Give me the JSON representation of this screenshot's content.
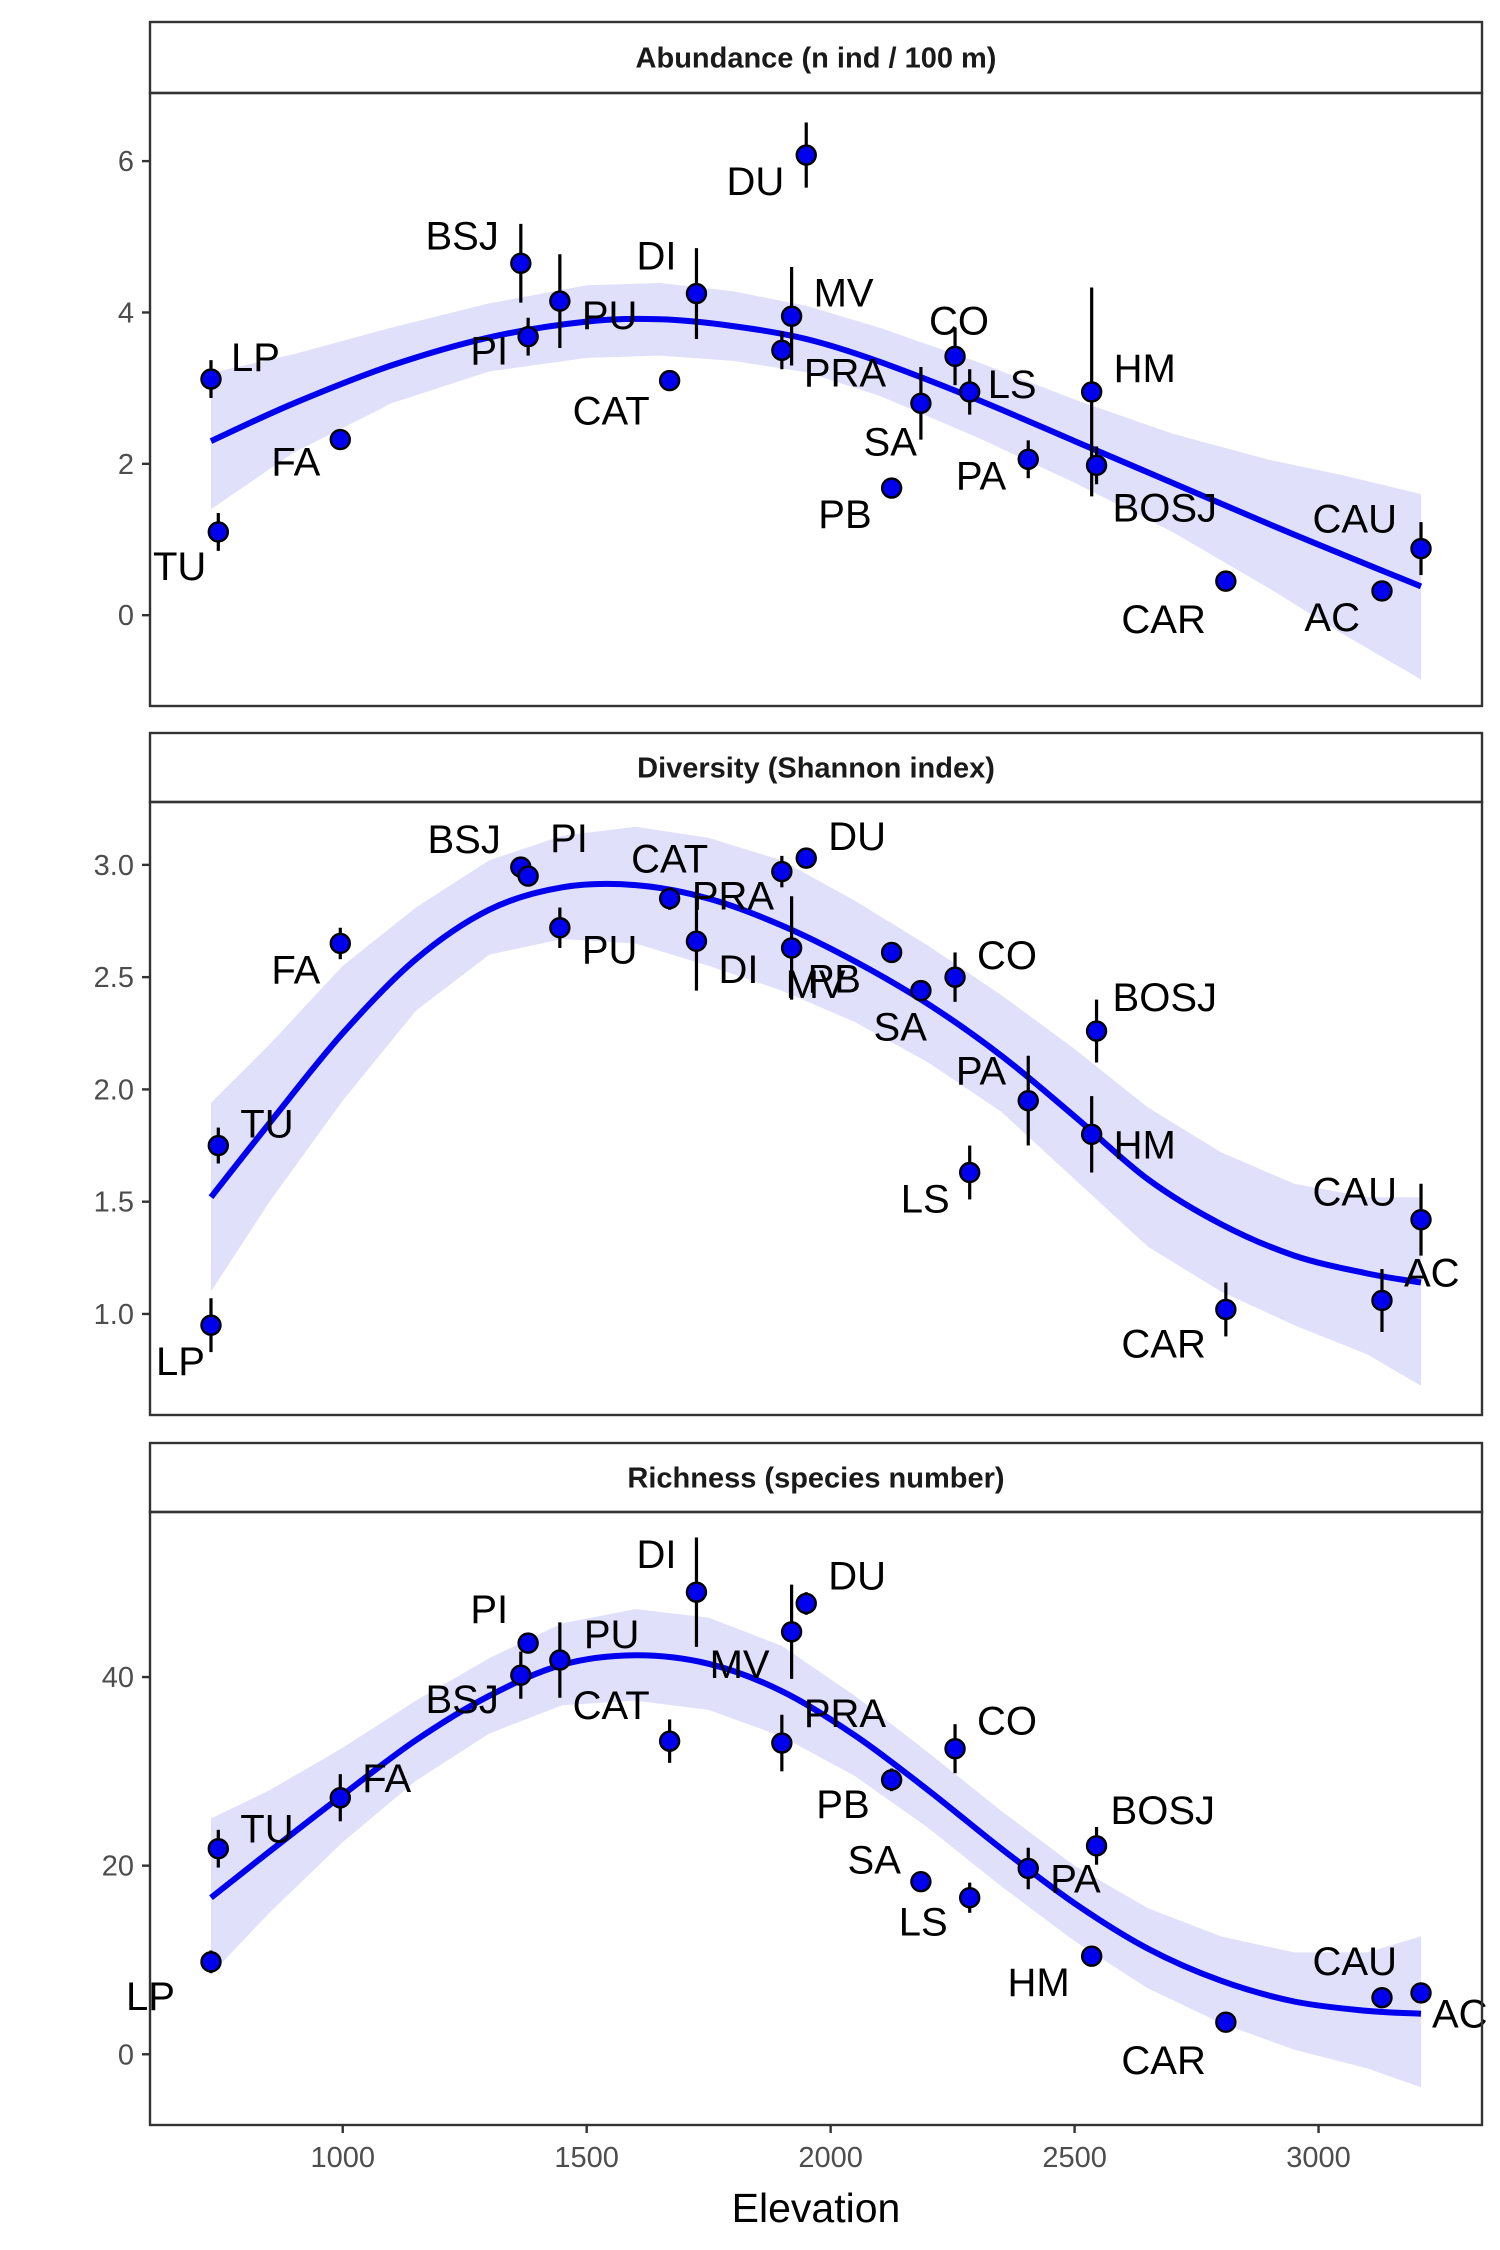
{
  "chart_data": [
    {
      "type": "scatter",
      "title": "Abundance (n ind / 100 m)",
      "ylim": [
        -1.2,
        6.9
      ],
      "yticks": [
        0,
        2,
        4,
        6
      ],
      "band_ymin": -1.2,
      "points": [
        {
          "label": "TU",
          "x": 745,
          "y": 1.1,
          "err": 0.25
        },
        {
          "label": "LP",
          "x": 730,
          "y": 3.12,
          "err": 0.25
        },
        {
          "label": "FA",
          "x": 995,
          "y": 2.32,
          "err": 0.12
        },
        {
          "label": "PI",
          "x": 1380,
          "y": 3.68,
          "err": 0.25
        },
        {
          "label": "BSJ",
          "x": 1365,
          "y": 4.65,
          "err": 0.52
        },
        {
          "label": "PU",
          "x": 1445,
          "y": 4.15,
          "err": 0.62
        },
        {
          "label": "CAT",
          "x": 1670,
          "y": 3.1,
          "err": 0.1
        },
        {
          "label": "DI",
          "x": 1725,
          "y": 4.25,
          "err": 0.6
        },
        {
          "label": "MV",
          "x": 1920,
          "y": 3.95,
          "err": 0.65
        },
        {
          "label": "DU",
          "x": 1950,
          "y": 6.08,
          "err": 0.43
        },
        {
          "label": "PRA",
          "x": 1900,
          "y": 3.5,
          "err": 0.25
        },
        {
          "label": "PB",
          "x": 2125,
          "y": 1.68,
          "err": 0.12
        },
        {
          "label": "SA",
          "x": 2185,
          "y": 2.8,
          "err": 0.48
        },
        {
          "label": "CO",
          "x": 2255,
          "y": 3.42,
          "err": 0.38
        },
        {
          "label": "LS",
          "x": 2285,
          "y": 2.95,
          "err": 0.3
        },
        {
          "label": "PA",
          "x": 2405,
          "y": 2.06,
          "err": 0.25
        },
        {
          "label": "HM",
          "x": 2535,
          "y": 2.95,
          "err": 1.38
        },
        {
          "label": "BOSJ",
          "x": 2545,
          "y": 1.98,
          "err": 0.25
        },
        {
          "label": "CAR",
          "x": 2810,
          "y": 0.45,
          "err": 0.05
        },
        {
          "label": "AC",
          "x": 3130,
          "y": 0.32,
          "err": 0.05
        },
        {
          "label": "CAU",
          "x": 3210,
          "y": 0.88,
          "err": 0.35
        }
      ],
      "fit": [
        {
          "x": 730,
          "y": 2.3,
          "lo": 1.4,
          "hi": 3.2
        },
        {
          "x": 900,
          "y": 2.8,
          "lo": 2.15,
          "hi": 3.45
        },
        {
          "x": 1100,
          "y": 3.3,
          "lo": 2.8,
          "hi": 3.8
        },
        {
          "x": 1300,
          "y": 3.67,
          "lo": 3.22,
          "hi": 4.12
        },
        {
          "x": 1500,
          "y": 3.88,
          "lo": 3.4,
          "hi": 4.36
        },
        {
          "x": 1650,
          "y": 3.91,
          "lo": 3.43,
          "hi": 4.39
        },
        {
          "x": 1800,
          "y": 3.82,
          "lo": 3.36,
          "hi": 4.28
        },
        {
          "x": 1950,
          "y": 3.65,
          "lo": 3.21,
          "hi": 4.09
        },
        {
          "x": 2100,
          "y": 3.35,
          "lo": 2.9,
          "hi": 3.8
        },
        {
          "x": 2300,
          "y": 2.85,
          "lo": 2.35,
          "hi": 3.35
        },
        {
          "x": 2500,
          "y": 2.3,
          "lo": 1.75,
          "hi": 2.85
        },
        {
          "x": 2700,
          "y": 1.75,
          "lo": 1.1,
          "hi": 2.4
        },
        {
          "x": 2900,
          "y": 1.2,
          "lo": 0.35,
          "hi": 2.05
        },
        {
          "x": 3050,
          "y": 0.8,
          "lo": -0.25,
          "hi": 1.85
        },
        {
          "x": 3210,
          "y": 0.38,
          "lo": -0.85,
          "hi": 1.6
        }
      ]
    },
    {
      "type": "scatter",
      "title": "Diversity (Shannon index)",
      "ylim": [
        0.55,
        3.28
      ],
      "yticks": [
        1.0,
        1.5,
        2.0,
        2.5,
        3.0
      ],
      "ytick_labels": [
        "1.0",
        "1.5",
        "2.0",
        "2.5",
        "3.0"
      ],
      "band_ymin": 0.55,
      "points": [
        {
          "label": "LP",
          "x": 730,
          "y": 0.95,
          "err": 0.12
        },
        {
          "label": "TU",
          "x": 745,
          "y": 1.75,
          "err": 0.08
        },
        {
          "label": "FA",
          "x": 995,
          "y": 2.65,
          "err": 0.07
        },
        {
          "label": "BSJ",
          "x": 1365,
          "y": 2.99,
          "err": 0.04
        },
        {
          "label": "PI",
          "x": 1380,
          "y": 2.95,
          "err": 0.04
        },
        {
          "label": "PU",
          "x": 1445,
          "y": 2.72,
          "err": 0.09
        },
        {
          "label": "CAT",
          "x": 1670,
          "y": 2.85,
          "err": 0.05
        },
        {
          "label": "DI",
          "x": 1725,
          "y": 2.66,
          "err": 0.22
        },
        {
          "label": "PRA",
          "x": 1900,
          "y": 2.97,
          "err": 0.07
        },
        {
          "label": "MV",
          "x": 1920,
          "y": 2.63,
          "err": 0.23
        },
        {
          "label": "DU",
          "x": 1950,
          "y": 3.03,
          "err": 0.03
        },
        {
          "label": "PB",
          "x": 2125,
          "y": 2.61,
          "err": 0.04
        },
        {
          "label": "SA",
          "x": 2185,
          "y": 2.44,
          "err": 0.03
        },
        {
          "label": "CO",
          "x": 2255,
          "y": 2.5,
          "err": 0.11
        },
        {
          "label": "LS",
          "x": 2285,
          "y": 1.63,
          "err": 0.12
        },
        {
          "label": "PA",
          "x": 2405,
          "y": 1.95,
          "err": 0.2
        },
        {
          "label": "HM",
          "x": 2535,
          "y": 1.8,
          "err": 0.17
        },
        {
          "label": "BOSJ",
          "x": 2545,
          "y": 2.26,
          "err": 0.14
        },
        {
          "label": "CAR",
          "x": 2810,
          "y": 1.02,
          "err": 0.12
        },
        {
          "label": "AC",
          "x": 3130,
          "y": 1.06,
          "err": 0.14
        },
        {
          "label": "CAU",
          "x": 3210,
          "y": 1.42,
          "err": 0.16
        }
      ],
      "fit": [
        {
          "x": 730,
          "y": 1.52,
          "lo": 1.1,
          "hi": 1.94
        },
        {
          "x": 850,
          "y": 1.85,
          "lo": 1.5,
          "hi": 2.2
        },
        {
          "x": 1000,
          "y": 2.25,
          "lo": 1.95,
          "hi": 2.55
        },
        {
          "x": 1150,
          "y": 2.58,
          "lo": 2.35,
          "hi": 2.81
        },
        {
          "x": 1300,
          "y": 2.8,
          "lo": 2.6,
          "hi": 3.02
        },
        {
          "x": 1450,
          "y": 2.9,
          "lo": 2.67,
          "hi": 3.13
        },
        {
          "x": 1600,
          "y": 2.91,
          "lo": 2.65,
          "hi": 3.17
        },
        {
          "x": 1750,
          "y": 2.85,
          "lo": 2.55,
          "hi": 3.12
        },
        {
          "x": 1900,
          "y": 2.73,
          "lo": 2.44,
          "hi": 3.02
        },
        {
          "x": 2050,
          "y": 2.57,
          "lo": 2.3,
          "hi": 2.84
        },
        {
          "x": 2200,
          "y": 2.38,
          "lo": 2.12,
          "hi": 2.64
        },
        {
          "x": 2350,
          "y": 2.15,
          "lo": 1.9,
          "hi": 2.42
        },
        {
          "x": 2500,
          "y": 1.88,
          "lo": 1.6,
          "hi": 2.18
        },
        {
          "x": 2650,
          "y": 1.6,
          "lo": 1.3,
          "hi": 1.92
        },
        {
          "x": 2800,
          "y": 1.4,
          "lo": 1.1,
          "hi": 1.72
        },
        {
          "x": 2950,
          "y": 1.26,
          "lo": 0.95,
          "hi": 1.58
        },
        {
          "x": 3100,
          "y": 1.18,
          "lo": 0.82,
          "hi": 1.52
        },
        {
          "x": 3210,
          "y": 1.14,
          "lo": 0.68,
          "hi": 1.52
        }
      ]
    },
    {
      "type": "scatter",
      "title": "Richness (species number)",
      "ylim": [
        -7.5,
        57.5
      ],
      "yticks": [
        0,
        20,
        40
      ],
      "band_ymin": -7.5,
      "points": [
        {
          "label": "LP",
          "x": 730,
          "y": 9.8,
          "err": 1.2
        },
        {
          "label": "TU",
          "x": 745,
          "y": 21.8,
          "err": 2.0
        },
        {
          "label": "FA",
          "x": 995,
          "y": 27.2,
          "err": 2.5
        },
        {
          "label": "BSJ",
          "x": 1365,
          "y": 40.2,
          "err": 2.5
        },
        {
          "label": "PI",
          "x": 1380,
          "y": 43.6,
          "err": 1.0
        },
        {
          "label": "PU",
          "x": 1445,
          "y": 41.8,
          "err": 4.0
        },
        {
          "label": "CAT",
          "x": 1670,
          "y": 33.2,
          "err": 2.3
        },
        {
          "label": "DI",
          "x": 1725,
          "y": 49.0,
          "err": 5.8
        },
        {
          "label": "PRA",
          "x": 1900,
          "y": 33.0,
          "err": 3.0
        },
        {
          "label": "MV",
          "x": 1920,
          "y": 44.8,
          "err": 5.0
        },
        {
          "label": "DU",
          "x": 1950,
          "y": 47.8,
          "err": 1.2
        },
        {
          "label": "PB",
          "x": 2125,
          "y": 29.1,
          "err": 1.2
        },
        {
          "label": "SA",
          "x": 2185,
          "y": 18.3,
          "err": 0.6
        },
        {
          "label": "CO",
          "x": 2255,
          "y": 32.4,
          "err": 2.6
        },
        {
          "label": "LS",
          "x": 2285,
          "y": 16.6,
          "err": 1.6
        },
        {
          "label": "PA",
          "x": 2405,
          "y": 19.7,
          "err": 2.2
        },
        {
          "label": "HM",
          "x": 2535,
          "y": 10.4,
          "err": 1.0
        },
        {
          "label": "BOSJ",
          "x": 2545,
          "y": 22.1,
          "err": 2.0
        },
        {
          "label": "CAR",
          "x": 2810,
          "y": 3.4,
          "err": 0.4
        },
        {
          "label": "AC",
          "x": 3130,
          "y": 6.0,
          "err": 0.4
        },
        {
          "label": "CAU",
          "x": 3210,
          "y": 6.5,
          "err": 0.4
        }
      ],
      "fit": [
        {
          "x": 730,
          "y": 16.6,
          "lo": 8.5,
          "hi": 25.0
        },
        {
          "x": 850,
          "y": 21.5,
          "lo": 15.0,
          "hi": 28.0
        },
        {
          "x": 1000,
          "y": 27.5,
          "lo": 22.5,
          "hi": 32.5
        },
        {
          "x": 1150,
          "y": 33.3,
          "lo": 29.0,
          "hi": 37.5
        },
        {
          "x": 1300,
          "y": 38.0,
          "lo": 34.0,
          "hi": 42.0
        },
        {
          "x": 1450,
          "y": 41.3,
          "lo": 37.0,
          "hi": 45.7
        },
        {
          "x": 1600,
          "y": 42.3,
          "lo": 37.5,
          "hi": 47.2
        },
        {
          "x": 1750,
          "y": 41.4,
          "lo": 36.5,
          "hi": 46.3
        },
        {
          "x": 1900,
          "y": 38.5,
          "lo": 33.7,
          "hi": 43.3
        },
        {
          "x": 2050,
          "y": 33.8,
          "lo": 29.5,
          "hi": 38.0
        },
        {
          "x": 2200,
          "y": 28.0,
          "lo": 24.0,
          "hi": 32.0
        },
        {
          "x": 2350,
          "y": 21.8,
          "lo": 17.8,
          "hi": 25.8
        },
        {
          "x": 2500,
          "y": 16.0,
          "lo": 12.0,
          "hi": 20.0
        },
        {
          "x": 2650,
          "y": 11.2,
          "lo": 7.0,
          "hi": 15.5
        },
        {
          "x": 2800,
          "y": 7.8,
          "lo": 3.3,
          "hi": 12.5
        },
        {
          "x": 2950,
          "y": 5.6,
          "lo": 0.5,
          "hi": 10.8
        },
        {
          "x": 3100,
          "y": 4.6,
          "lo": -1.5,
          "hi": 10.8
        },
        {
          "x": 3210,
          "y": 4.3,
          "lo": -3.5,
          "hi": 12.5
        }
      ]
    }
  ],
  "x_axis": {
    "title": "Elevation",
    "xlim": [
      605,
      3335
    ],
    "ticks": [
      1000,
      1500,
      2000,
      2500,
      3000
    ],
    "tick_labels": [
      "1000",
      "1500",
      "2000",
      "2500",
      "3000"
    ]
  },
  "colors": {
    "point_fill": "#0000ee",
    "fit_line": "#0000ee",
    "band": "#e0e0fb",
    "error_bar": "#000000",
    "strip_bg": "#ffffff",
    "strip_border": "#333333",
    "axis": "#333333"
  }
}
